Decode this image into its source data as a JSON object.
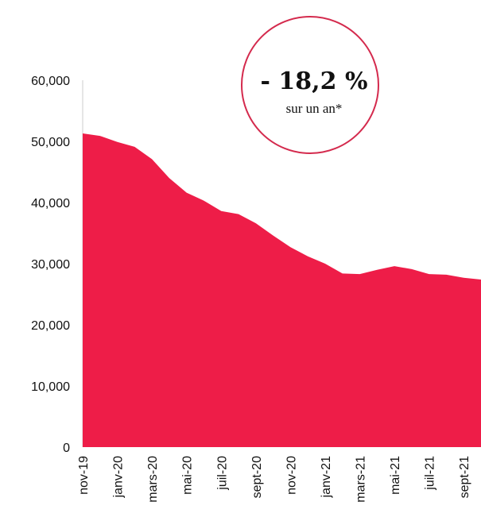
{
  "chart_data": {
    "type": "area",
    "categories": [
      "nov-19",
      null,
      "janv-20",
      null,
      "mars-20",
      null,
      "mai-20",
      null,
      "juil-20",
      null,
      "sept-20",
      null,
      "nov-20",
      null,
      "janv-21",
      null,
      "mars-21",
      null,
      "mai-21",
      null,
      "juil-21",
      null,
      "sept-21",
      null
    ],
    "values": [
      51300,
      50900,
      49900,
      49100,
      47100,
      44000,
      41600,
      40300,
      38600,
      38100,
      36600,
      34600,
      32700,
      31200,
      30000,
      28400,
      28300,
      29000,
      29600,
      29100,
      28300,
      28200,
      27700,
      27400
    ],
    "color": "#ee1d48",
    "ylim": [
      0,
      60000
    ],
    "yticks": [
      0,
      {
        "value": 10000,
        "label": "10,000"
      },
      {
        "value": 20000,
        "label": "20,000"
      },
      {
        "value": 30000,
        "label": "30,000"
      },
      {
        "value": 40000,
        "label": "40,000"
      },
      {
        "value": 50000,
        "label": "50,000"
      },
      {
        "value": 60000,
        "label": "60,000"
      }
    ],
    "annotation": {
      "value_text": "- 18,2 %",
      "subtext": "sur un an*"
    }
  }
}
